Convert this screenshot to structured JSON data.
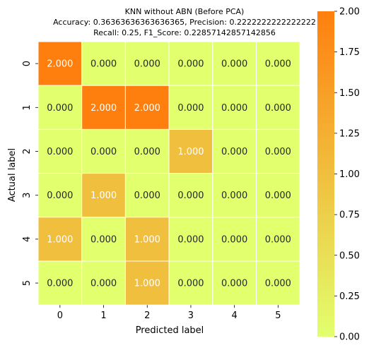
{
  "chart_data": {
    "type": "heatmap",
    "title_lines": [
      "KNN without ABN (Before PCA)",
      "Accuracy: 0.36363636363636365, Precision: 0.2222222222222222",
      "Recall: 0.25, F1_Score: 0.22857142857142856"
    ],
    "xlabel": "Predicted label",
    "ylabel": "Actual label",
    "x_categories": [
      "0",
      "1",
      "2",
      "3",
      "4",
      "5"
    ],
    "y_categories": [
      "0",
      "1",
      "2",
      "3",
      "4",
      "5"
    ],
    "values": [
      [
        2,
        0,
        0,
        0,
        0,
        0
      ],
      [
        0,
        2,
        2,
        0,
        0,
        0
      ],
      [
        0,
        0,
        0,
        1,
        0,
        0
      ],
      [
        0,
        1,
        0,
        0,
        0,
        0
      ],
      [
        1,
        0,
        1,
        0,
        0,
        0
      ],
      [
        0,
        0,
        1,
        0,
        0,
        0
      ]
    ],
    "value_format": "3 decimals",
    "color_range": [
      0,
      2
    ],
    "colorbar_ticks": [
      "0.00",
      "0.25",
      "0.50",
      "0.75",
      "1.00",
      "1.25",
      "1.50",
      "1.75",
      "2.00"
    ],
    "colormap_low": "#e2ff6e",
    "colormap_high": "#ff7f0e"
  }
}
